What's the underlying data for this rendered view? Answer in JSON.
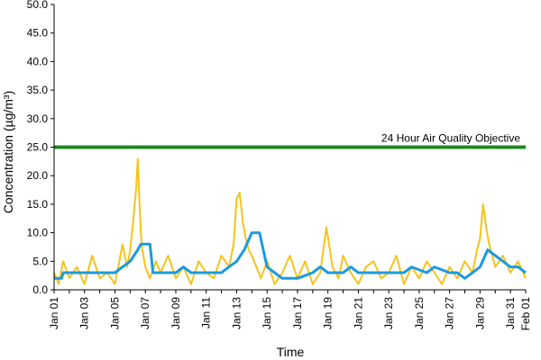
{
  "chart_data": {
    "type": "line",
    "ylabel": "Concentration (µg/m³)",
    "xlabel": "Time",
    "ylim": [
      0,
      50
    ],
    "y_ticks": [
      "0.0",
      "5.0",
      "10.0",
      "15.0",
      "20.0",
      "25.0",
      "30.0",
      "35.0",
      "40.0",
      "45.0",
      "50.0"
    ],
    "x_tick_labels": [
      "Jan 01",
      "Jan 03",
      "Jan 05",
      "Jan 07",
      "Jan 09",
      "Jan 11",
      "Jan 13",
      "Jan 15",
      "Jan 17",
      "Jan 19",
      "Jan 21",
      "Jan 23",
      "Jan 25",
      "Jan 27",
      "Jan 29",
      "Jan 31",
      "Feb 01"
    ],
    "x_tick_days": [
      0,
      2,
      4,
      6,
      8,
      10,
      12,
      14,
      16,
      18,
      20,
      22,
      24,
      26,
      28,
      30,
      31
    ],
    "xlim_days": [
      0,
      31
    ],
    "grid": false,
    "objective": {
      "label": "24 Hour Air Quality Objective",
      "value": 25.0,
      "color": "#1e8a1e"
    },
    "series": [
      {
        "color": "#f5c41a",
        "kind": "hourly",
        "x_days": [
          0,
          0.3,
          0.6,
          1.0,
          1.5,
          2.0,
          2.5,
          3.0,
          3.5,
          4.0,
          4.5,
          4.8,
          5.0,
          5.2,
          5.4,
          5.5,
          5.6,
          5.7,
          5.8,
          6.0,
          6.3,
          6.7,
          7.0,
          7.5,
          8.0,
          8.5,
          9.0,
          9.5,
          10.0,
          10.5,
          11.0,
          11.5,
          11.8,
          12.0,
          12.2,
          12.4,
          12.6,
          12.8,
          13.0,
          13.3,
          13.6,
          14.0,
          14.5,
          15.0,
          15.5,
          16.0,
          16.5,
          17.0,
          17.5,
          17.9,
          18.3,
          18.7,
          19.0,
          19.5,
          20.0,
          20.5,
          21.0,
          21.5,
          22.0,
          22.5,
          23.0,
          23.5,
          24.0,
          24.5,
          25.0,
          25.5,
          26.0,
          26.5,
          27.0,
          27.5,
          27.8,
          28.0,
          28.2,
          28.4,
          28.6,
          29.0,
          29.5,
          30.0,
          30.5,
          31.0
        ],
        "values": [
          3,
          1,
          5,
          2,
          4,
          1,
          6,
          2,
          3,
          1,
          8,
          4,
          7,
          12,
          18,
          23,
          16,
          10,
          7,
          4,
          2,
          5,
          3,
          6,
          2,
          4,
          1,
          5,
          3,
          2,
          6,
          4,
          8,
          16,
          17,
          12,
          9,
          7,
          6,
          4,
          2,
          5,
          1,
          3,
          6,
          2,
          5,
          1,
          3,
          11,
          4,
          2,
          6,
          3,
          1,
          4,
          5,
          2,
          3,
          6,
          1,
          4,
          2,
          5,
          3,
          1,
          4,
          2,
          5,
          3,
          7,
          9,
          15,
          11,
          8,
          4,
          6,
          3,
          5,
          2
        ]
      },
      {
        "color": "#1b9be0",
        "kind": "24-hour running mean",
        "x_days": [
          0,
          0.5,
          0.6,
          2.5,
          3.0,
          4.0,
          4.5,
          5.0,
          5.5,
          5.7,
          6.3,
          6.5,
          7.5,
          8.0,
          8.5,
          9.0,
          10.0,
          11.0,
          11.5,
          12.0,
          12.5,
          13.0,
          13.5,
          14.0,
          14.5,
          15.0,
          16.0,
          17.0,
          17.5,
          18.0,
          19.0,
          19.5,
          20.0,
          21.0,
          22.0,
          23.0,
          23.5,
          24.5,
          25.0,
          26.0,
          26.5,
          27.0,
          27.5,
          28.0,
          28.5,
          29.0,
          29.5,
          30.0,
          30.5,
          31.0
        ],
        "values": [
          2,
          2,
          3,
          3,
          3,
          3,
          4,
          5,
          7,
          8,
          8,
          3,
          3,
          3,
          4,
          3,
          3,
          3,
          4,
          5,
          7,
          10,
          10,
          4,
          3,
          2,
          2,
          3,
          4,
          3,
          3,
          4,
          3,
          3,
          3,
          3,
          4,
          3,
          4,
          3,
          3,
          2,
          3,
          4,
          7,
          6,
          5,
          4,
          4,
          3
        ]
      }
    ]
  }
}
